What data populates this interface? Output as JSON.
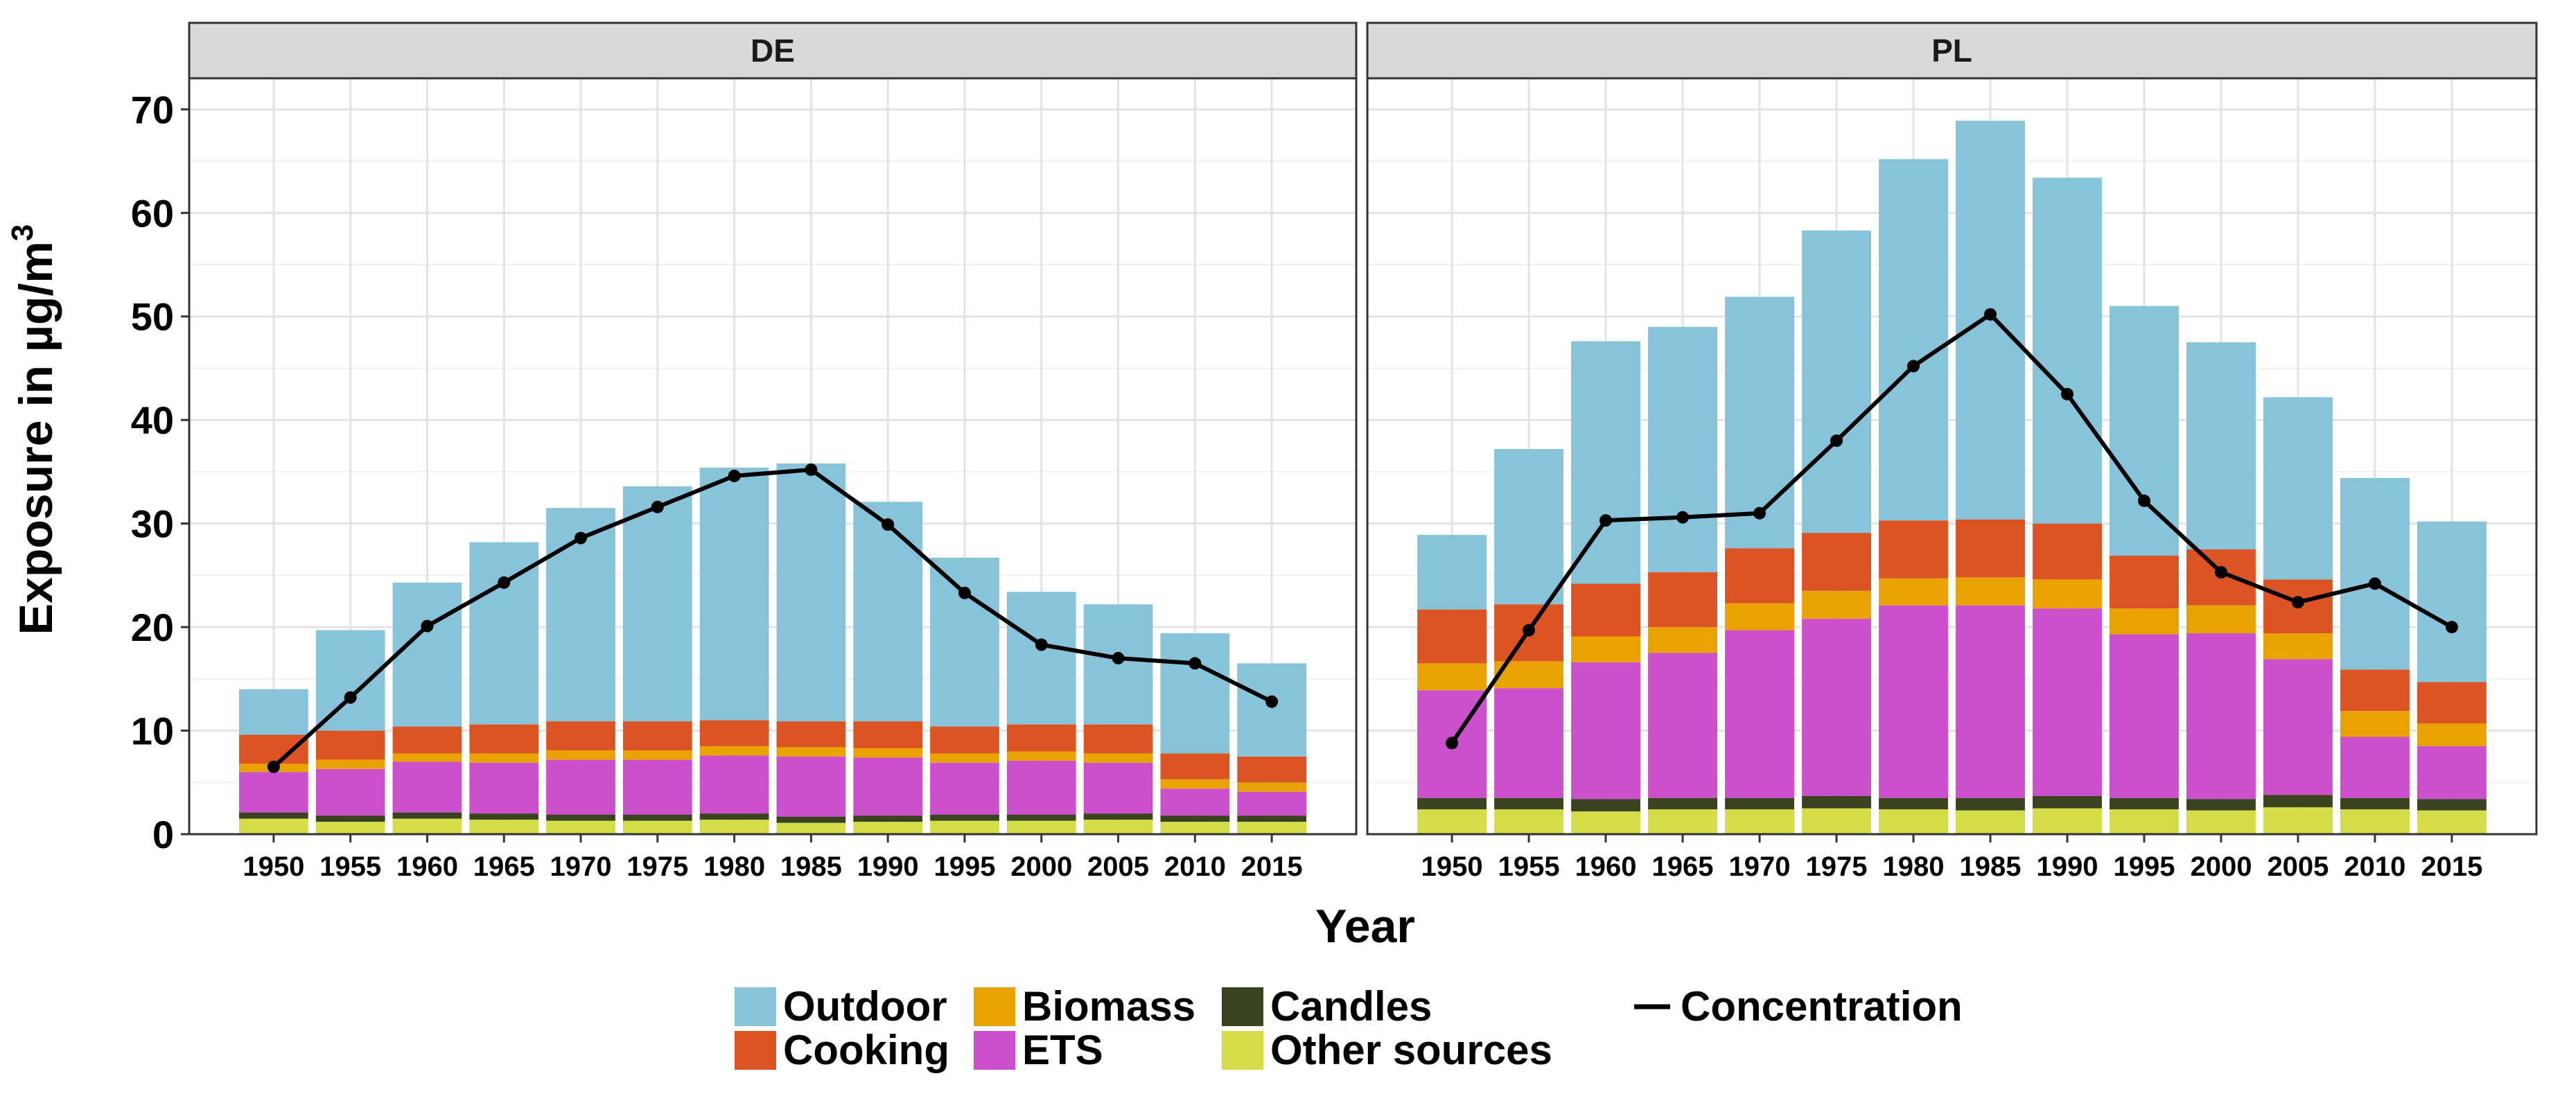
{
  "chart_data": {
    "type": "bar",
    "subtype": "stacked bar with line overlay",
    "xlabel": "Year",
    "ylabel": "Exposure in µg/m",
    "ylabel_superscript": "3",
    "ylim": [
      0,
      73
    ],
    "yticks": [
      0,
      10,
      20,
      30,
      40,
      50,
      60,
      70
    ],
    "grid": true,
    "legend_position": "bottom",
    "categories": [
      "1950",
      "1955",
      "1960",
      "1965",
      "1970",
      "1975",
      "1980",
      "1985",
      "1990",
      "1995",
      "2000",
      "2005",
      "2010",
      "2015"
    ],
    "stack_order": [
      "Other sources",
      "Candles",
      "ETS",
      "Biomass",
      "Cooking",
      "Outdoor"
    ],
    "colors": {
      "Outdoor": "#87c3d9",
      "Cooking": "#dd5424",
      "Biomass": "#e8a202",
      "ETS": "#cc4fcc",
      "Candles": "#3b4220",
      "Other sources": "#d4dc48",
      "Concentration": "#000000"
    },
    "legend": {
      "items": [
        {
          "label": "Outdoor",
          "key": "Outdoor"
        },
        {
          "label": "Cooking",
          "key": "Cooking"
        },
        {
          "label": "Biomass",
          "key": "Biomass"
        },
        {
          "label": "ETS",
          "key": "ETS"
        },
        {
          "label": "Candles",
          "key": "Candles"
        },
        {
          "label": "Other sources",
          "key": "Other sources"
        }
      ],
      "line_label": "Concentration"
    },
    "panels": [
      {
        "label": "DE",
        "series": [
          {
            "name": "Other sources",
            "values": [
              1.5,
              1.2,
              1.5,
              1.4,
              1.3,
              1.3,
              1.4,
              1.1,
              1.2,
              1.3,
              1.3,
              1.4,
              1.2,
              1.2
            ]
          },
          {
            "name": "Candles",
            "values": [
              0.6,
              0.6,
              0.6,
              0.6,
              0.6,
              0.6,
              0.6,
              0.6,
              0.6,
              0.6,
              0.6,
              0.6,
              0.6,
              0.6
            ]
          },
          {
            "name": "ETS",
            "values": [
              3.9,
              4.5,
              4.9,
              4.9,
              5.3,
              5.3,
              5.6,
              5.8,
              5.6,
              5.0,
              5.2,
              4.9,
              2.6,
              2.3
            ]
          },
          {
            "name": "Biomass",
            "values": [
              0.8,
              0.9,
              0.8,
              0.9,
              0.9,
              0.9,
              0.9,
              0.9,
              0.9,
              0.9,
              0.9,
              0.9,
              0.9,
              0.9
            ]
          },
          {
            "name": "Cooking",
            "values": [
              2.8,
              2.8,
              2.6,
              2.8,
              2.8,
              2.8,
              2.5,
              2.5,
              2.6,
              2.6,
              2.6,
              2.8,
              2.5,
              2.5
            ]
          },
          {
            "name": "Outdoor",
            "values": [
              4.4,
              9.7,
              13.9,
              17.6,
              20.6,
              22.7,
              24.4,
              24.9,
              21.2,
              16.3,
              12.8,
              11.6,
              11.6,
              9.0
            ]
          }
        ],
        "line": {
          "name": "Concentration",
          "values": [
            6.5,
            13.2,
            20.1,
            24.3,
            28.6,
            31.6,
            34.6,
            35.2,
            29.9,
            23.3,
            18.3,
            17.0,
            16.5,
            12.8
          ]
        }
      },
      {
        "label": "PL",
        "series": [
          {
            "name": "Other sources",
            "values": [
              2.4,
              2.4,
              2.2,
              2.4,
              2.4,
              2.5,
              2.4,
              2.3,
              2.5,
              2.4,
              2.3,
              2.6,
              2.4,
              2.3
            ]
          },
          {
            "name": "Candles",
            "values": [
              1.1,
              1.1,
              1.2,
              1.1,
              1.1,
              1.2,
              1.1,
              1.2,
              1.2,
              1.1,
              1.1,
              1.2,
              1.1,
              1.1
            ]
          },
          {
            "name": "ETS",
            "values": [
              10.4,
              10.6,
              13.2,
              14.0,
              16.2,
              17.1,
              18.6,
              18.6,
              18.1,
              15.8,
              16.0,
              13.1,
              5.9,
              5.1
            ]
          },
          {
            "name": "Biomass",
            "values": [
              2.6,
              2.6,
              2.5,
              2.5,
              2.6,
              2.7,
              2.6,
              2.7,
              2.8,
              2.5,
              2.7,
              2.5,
              2.5,
              2.2
            ]
          },
          {
            "name": "Cooking",
            "values": [
              5.2,
              5.5,
              5.1,
              5.3,
              5.3,
              5.6,
              5.6,
              5.6,
              5.4,
              5.1,
              5.4,
              5.2,
              4.0,
              4.0
            ]
          },
          {
            "name": "Outdoor",
            "values": [
              7.2,
              15.0,
              23.4,
              23.7,
              24.3,
              29.2,
              34.9,
              38.5,
              33.4,
              24.1,
              20.0,
              17.6,
              18.5,
              15.5
            ]
          }
        ],
        "line": {
          "name": "Concentration",
          "values": [
            8.8,
            19.7,
            30.3,
            30.6,
            31.0,
            38.0,
            45.2,
            50.2,
            42.5,
            32.2,
            25.3,
            22.4,
            24.2,
            20.0
          ]
        }
      }
    ]
  }
}
